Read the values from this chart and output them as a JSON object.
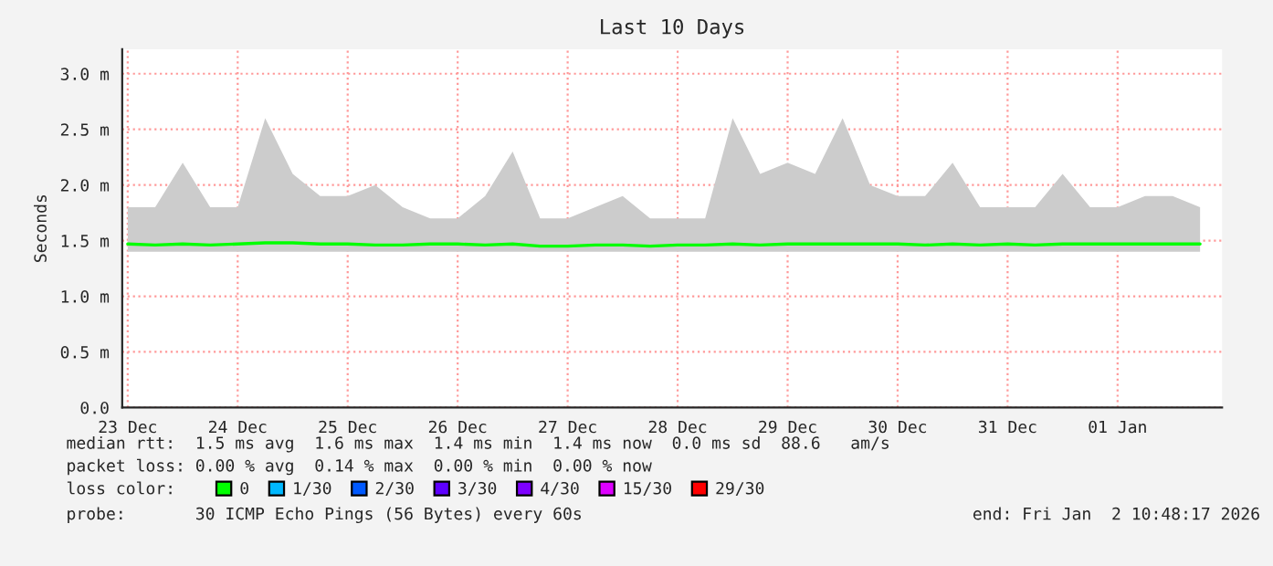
{
  "chart_data": {
    "type": "line",
    "title": "Last 10 Days",
    "ylabel": "Seconds",
    "x": [
      "2025-12-23T12:00",
      "2025-12-23T18:00",
      "2025-12-24T00:00",
      "2025-12-24T06:00",
      "2025-12-24T12:00",
      "2025-12-24T18:00",
      "2025-12-25T00:00",
      "2025-12-25T06:00",
      "2025-12-25T12:00",
      "2025-12-25T18:00",
      "2025-12-26T00:00",
      "2025-12-26T06:00",
      "2025-12-26T12:00",
      "2025-12-26T18:00",
      "2025-12-27T00:00",
      "2025-12-27T06:00",
      "2025-12-27T12:00",
      "2025-12-27T18:00",
      "2025-12-28T00:00",
      "2025-12-28T06:00",
      "2025-12-28T12:00",
      "2025-12-28T18:00",
      "2025-12-29T00:00",
      "2025-12-29T06:00",
      "2025-12-29T12:00",
      "2025-12-29T18:00",
      "2025-12-30T00:00",
      "2025-12-30T06:00",
      "2025-12-30T12:00",
      "2025-12-30T18:00",
      "2025-12-31T00:00",
      "2025-12-31T06:00",
      "2025-12-31T12:00",
      "2025-12-31T18:00",
      "2026-01-01T00:00",
      "2026-01-01T06:00",
      "2026-01-01T12:00",
      "2026-01-01T18:00",
      "2026-01-02T00:00",
      "2026-01-02T06:00"
    ],
    "series": [
      {
        "name": "0",
        "color": "#00ff00",
        "upper": [
          1.8,
          1.8,
          2.2,
          1.8,
          1.8,
          2.6,
          2.1,
          1.9,
          1.9,
          2.0,
          1.8,
          1.7,
          1.7,
          1.9,
          2.3,
          1.7,
          1.7,
          1.8,
          1.9,
          1.7,
          1.7,
          1.7,
          2.6,
          2.1,
          2.2,
          2.1,
          2.6,
          2.0,
          1.9,
          1.9,
          2.2,
          1.8,
          1.8,
          1.8,
          2.1,
          1.8,
          1.8,
          1.9,
          1.9,
          1.8
        ],
        "lower": [
          1.4,
          1.4,
          1.4,
          1.4,
          1.4,
          1.4,
          1.4,
          1.4,
          1.4,
          1.4,
          1.4,
          1.4,
          1.4,
          1.4,
          1.4,
          1.4,
          1.4,
          1.4,
          1.4,
          1.4,
          1.4,
          1.4,
          1.4,
          1.4,
          1.4,
          1.4,
          1.4,
          1.4,
          1.4,
          1.4,
          1.4,
          1.4,
          1.4,
          1.4,
          1.4,
          1.4,
          1.4,
          1.4,
          1.4,
          1.4
        ],
        "values": [
          1.47,
          1.46,
          1.47,
          1.46,
          1.47,
          1.48,
          1.48,
          1.47,
          1.47,
          1.46,
          1.46,
          1.47,
          1.47,
          1.46,
          1.47,
          1.45,
          1.45,
          1.46,
          1.46,
          1.45,
          1.46,
          1.46,
          1.47,
          1.46,
          1.47,
          1.47,
          1.47,
          1.47,
          1.47,
          1.46,
          1.47,
          1.46,
          1.47,
          1.46,
          1.47,
          1.47,
          1.47,
          1.47,
          1.47,
          1.47
        ]
      },
      {
        "name": "1/30",
        "color": "#00b8ff",
        "values": [
          null,
          null,
          null,
          null,
          null,
          null,
          null,
          null,
          null,
          null,
          null,
          null,
          null,
          null,
          null,
          null,
          null,
          null,
          null,
          null,
          null,
          null,
          null,
          null,
          null,
          null,
          null,
          null,
          null,
          null,
          null,
          null,
          null,
          null,
          null,
          null,
          null,
          null,
          null,
          null
        ]
      },
      {
        "name": "2/30",
        "color": "#0059ff",
        "values": [
          null,
          null,
          null,
          null,
          null,
          null,
          null,
          null,
          null,
          null,
          null,
          null,
          null,
          null,
          null,
          null,
          null,
          null,
          null,
          null,
          null,
          null,
          null,
          null,
          null,
          null,
          null,
          null,
          null,
          null,
          null,
          null,
          null,
          null,
          null,
          null,
          null,
          null,
          null,
          null
        ]
      },
      {
        "name": "3/30",
        "color": "#5e00ff",
        "values": [
          null,
          null,
          null,
          null,
          null,
          null,
          null,
          null,
          null,
          null,
          null,
          null,
          null,
          null,
          null,
          null,
          null,
          null,
          null,
          null,
          null,
          null,
          null,
          null,
          null,
          null,
          null,
          null,
          null,
          null,
          null,
          null,
          null,
          null,
          null,
          null,
          null,
          null,
          null,
          null
        ]
      },
      {
        "name": "4/30",
        "color": "#7e00ff",
        "values": [
          null,
          null,
          null,
          null,
          null,
          null,
          null,
          null,
          null,
          null,
          null,
          null,
          null,
          null,
          null,
          null,
          null,
          null,
          null,
          null,
          null,
          null,
          null,
          null,
          null,
          null,
          null,
          null,
          null,
          null,
          null,
          null,
          null,
          null,
          null,
          null,
          null,
          null,
          null,
          null
        ]
      },
      {
        "name": "15/30",
        "color": "#dd00ff",
        "values": [
          null,
          null,
          null,
          null,
          null,
          null,
          null,
          null,
          null,
          null,
          null,
          null,
          null,
          null,
          null,
          null,
          null,
          null,
          null,
          null,
          null,
          null,
          null,
          null,
          null,
          null,
          null,
          null,
          null,
          null,
          null,
          null,
          null,
          null,
          null,
          null,
          null,
          null,
          null,
          null
        ]
      },
      {
        "name": "29/30",
        "color": "#ff0000",
        "values": [
          null,
          null,
          null,
          null,
          null,
          null,
          null,
          null,
          null,
          null,
          null,
          null,
          null,
          null,
          null,
          null,
          null,
          null,
          null,
          null,
          null,
          null,
          null,
          null,
          null,
          null,
          null,
          null,
          null,
          null,
          null,
          null,
          null,
          null,
          null,
          null,
          null,
          null,
          null,
          null
        ]
      }
    ],
    "legend_title": "loss color:",
    "legend": "bottom",
    "xlim": [
      "2025-12-23T10:48",
      "2026-01-02T10:48"
    ],
    "xticks": [
      {
        "value": "2025-12-23T12:00",
        "label": "23 Dec"
      },
      {
        "value": "2025-12-24T12:00",
        "label": "24 Dec"
      },
      {
        "value": "2025-12-25T12:00",
        "label": "25 Dec"
      },
      {
        "value": "2025-12-26T12:00",
        "label": "26 Dec"
      },
      {
        "value": "2025-12-27T12:00",
        "label": "27 Dec"
      },
      {
        "value": "2025-12-28T12:00",
        "label": "28 Dec"
      },
      {
        "value": "2025-12-29T12:00",
        "label": "29 Dec"
      },
      {
        "value": "2025-12-30T12:00",
        "label": "30 Dec"
      },
      {
        "value": "2025-12-31T12:00",
        "label": "31 Dec"
      },
      {
        "value": "2026-01-01T12:00",
        "label": "01 Jan"
      }
    ],
    "ylim": [
      0,
      3.22
    ],
    "yticks": [
      {
        "value": 0,
        "label": "0.0"
      },
      {
        "value": 0.5,
        "label": "0.5 m"
      },
      {
        "value": 1.0,
        "label": "1.0 m"
      },
      {
        "value": 1.5,
        "label": "1.5 m"
      },
      {
        "value": 2.0,
        "label": "2.0 m"
      },
      {
        "value": 2.5,
        "label": "2.5 m"
      },
      {
        "value": 3.0,
        "label": "3.0 m"
      }
    ],
    "grid": true,
    "annotations": [
      "median rtt:  1.5 ms avg  1.6 ms max  1.4 ms min  1.4 ms now  0.0 ms sd  88.6   am/s",
      "packet loss: 0.00 % avg  0.14 % max  0.00 % min  0.00 % now",
      "probe:       30 ICMP Echo Pings (56 Bytes) every 60s",
      "end: Fri Jan  2 10:48:17 2026"
    ]
  }
}
